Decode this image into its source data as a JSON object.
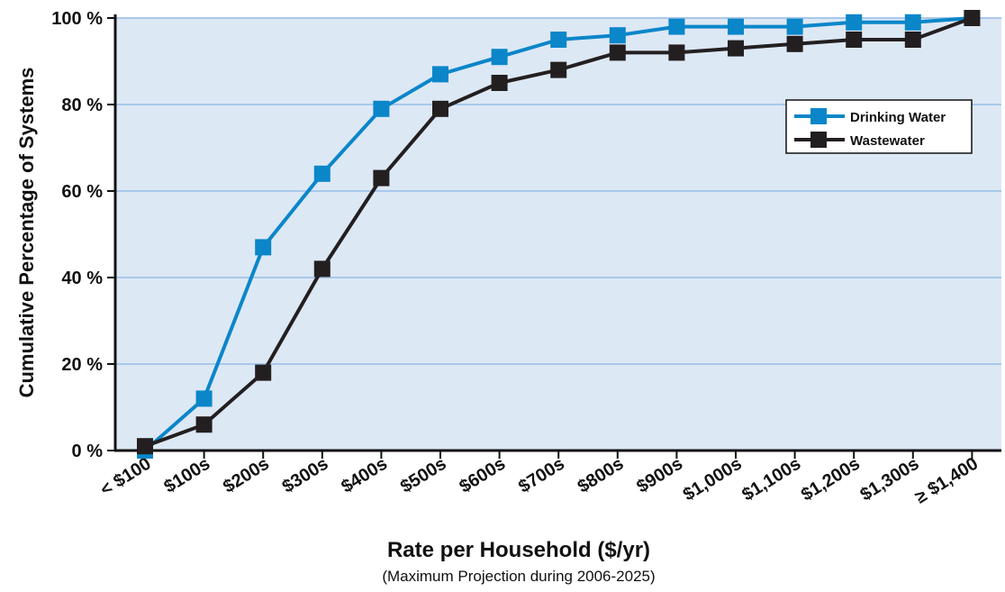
{
  "chart_data": {
    "type": "line",
    "title": "",
    "xlabel": "Rate per Household ($/yr)",
    "xlabel_sub": "(Maximum Projection during 2006-2025)",
    "ylabel": "Cumulative Percentage of Systems",
    "categories": [
      "< $100",
      "$100s",
      "$200s",
      "$300s",
      "$400s",
      "$500s",
      "$600s",
      "$700s",
      "$800s",
      "$900s",
      "$1,000s",
      "$1,100s",
      "$1,200s",
      "$1,300s",
      "≥ $1,400"
    ],
    "ylim": [
      0,
      100
    ],
    "yticks": [
      0,
      20,
      40,
      60,
      80,
      100
    ],
    "ytick_labels": [
      "0 %",
      "20 %",
      "40 %",
      "60 %",
      "80 %",
      "100 %"
    ],
    "grid": true,
    "legend_position": "top-right",
    "series": [
      {
        "name": "Drinking Water",
        "color": "#0a86c9",
        "values": [
          0,
          12,
          47,
          64,
          79,
          87,
          91,
          95,
          96,
          98,
          98,
          98,
          99,
          99,
          100
        ]
      },
      {
        "name": "Wastewater",
        "color": "#231f20",
        "values": [
          1,
          6,
          18,
          42,
          63,
          79,
          85,
          88,
          92,
          92,
          93,
          94,
          95,
          95,
          100
        ]
      }
    ],
    "colors": {
      "plot_background": "#dde8f5",
      "gridline": "#a9c8ea",
      "axis": "#111111"
    }
  }
}
